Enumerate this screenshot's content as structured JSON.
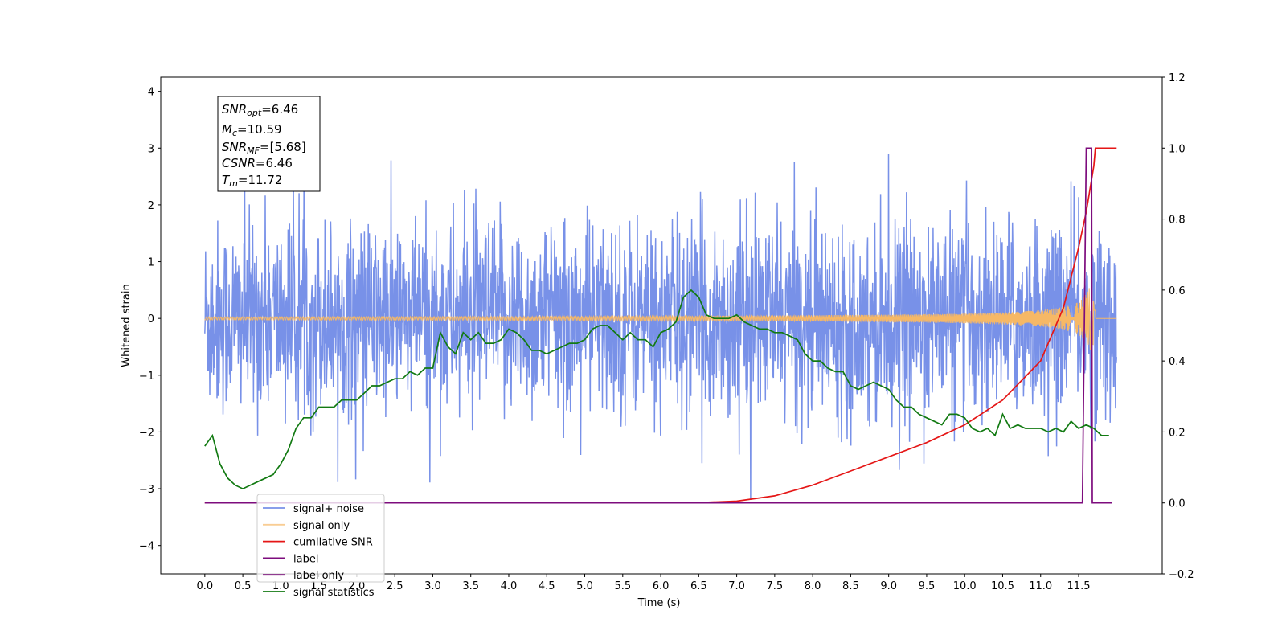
{
  "chart_data": {
    "type": "line",
    "xlabel": "Time (s)",
    "ylabel": "Whitened strain",
    "ylabel_right": "",
    "xlim": [
      -0.58,
      12.6
    ],
    "ylim": [
      -4.5,
      4.25
    ],
    "ylim_right": [
      -0.2,
      1.2
    ],
    "x_ticks": [
      "0.0",
      "0.5",
      "1.0",
      "1.5",
      "2.0",
      "2.5",
      "3.0",
      "3.5",
      "4.0",
      "4.5",
      "5.0",
      "5.5",
      "6.0",
      "6.5",
      "7.0",
      "7.5",
      "8.0",
      "8.5",
      "9.0",
      "9.5",
      "10.0",
      "10.5",
      "11.0",
      "11.5"
    ],
    "y_ticks": [
      "4",
      "3",
      "2",
      "1",
      "0",
      "−1",
      "−2",
      "−3",
      "−4"
    ],
    "y_ticks_right": [
      "1.2",
      "1.0",
      "0.8",
      "0.6",
      "0.4",
      "0.2",
      "0.0",
      "−0.2"
    ],
    "info_box": {
      "snr_opt": {
        "base": "SNR",
        "sub": "opt",
        "value": "=6.46"
      },
      "mc": {
        "base": "M",
        "sub": "c",
        "value": "=10.59"
      },
      "snr_mf": {
        "base": "SNR",
        "sub": "MF",
        "value": "=[5.68]"
      },
      "csnr": {
        "base": "CSNR",
        "value": "=6.46"
      },
      "tm": {
        "base": "T",
        "sub": "m",
        "value": "=11.72"
      }
    },
    "series": [
      {
        "name": "signal+ noise",
        "color": "#7891e8",
        "axis": "left",
        "kind": "noise",
        "duration": 12.0,
        "noise_std": 0.85,
        "noise_spread": 1.5
      },
      {
        "name": "signal only",
        "color": "#f6b866",
        "axis": "left",
        "kind": "chirp",
        "duration": 11.72,
        "amplitude_end": 0.55
      },
      {
        "name": "cumilative SNR",
        "color": "#e51616",
        "axis": "right",
        "x": [
          0.0,
          6.0,
          6.5,
          7.0,
          7.5,
          8.0,
          8.5,
          9.0,
          9.5,
          10.0,
          10.5,
          11.0,
          11.3,
          11.5,
          11.6,
          11.7,
          11.72,
          11.8,
          12.0
        ],
        "y": [
          0.0,
          0.0,
          0.001,
          0.005,
          0.02,
          0.05,
          0.09,
          0.13,
          0.17,
          0.22,
          0.29,
          0.4,
          0.55,
          0.72,
          0.82,
          0.95,
          1.0,
          1.0,
          1.0
        ]
      },
      {
        "name": "label",
        "color": "#7d0c7d",
        "axis": "right",
        "x": [
          0.0,
          11.55,
          11.6,
          11.67,
          11.68,
          11.72,
          11.75,
          11.94
        ],
        "y": [
          0.0,
          0.0,
          1.0,
          1.0,
          0.0,
          0.0,
          0.0,
          0.0
        ]
      },
      {
        "name": "label only",
        "color": "#7d0c7d",
        "axis": "right",
        "kind": "legend-only"
      },
      {
        "name": "signal statistics",
        "color": "#127a12",
        "axis": "right",
        "x": [
          0.0,
          0.1,
          0.2,
          0.3,
          0.4,
          0.5,
          0.6,
          0.7,
          0.8,
          0.9,
          1.0,
          1.1,
          1.2,
          1.3,
          1.4,
          1.5,
          1.6,
          1.7,
          1.8,
          1.9,
          2.0,
          2.1,
          2.2,
          2.3,
          2.4,
          2.5,
          2.6,
          2.7,
          2.8,
          2.9,
          3.0,
          3.1,
          3.2,
          3.3,
          3.4,
          3.5,
          3.6,
          3.7,
          3.8,
          3.9,
          4.0,
          4.1,
          4.2,
          4.3,
          4.4,
          4.5,
          4.6,
          4.7,
          4.8,
          4.9,
          5.0,
          5.1,
          5.2,
          5.3,
          5.4,
          5.5,
          5.6,
          5.7,
          5.8,
          5.9,
          6.0,
          6.1,
          6.2,
          6.3,
          6.4,
          6.5,
          6.6,
          6.7,
          6.8,
          6.9,
          7.0,
          7.1,
          7.2,
          7.3,
          7.4,
          7.5,
          7.6,
          7.7,
          7.8,
          7.9,
          8.0,
          8.1,
          8.2,
          8.3,
          8.4,
          8.5,
          8.6,
          8.7,
          8.8,
          8.9,
          9.0,
          9.1,
          9.2,
          9.3,
          9.4,
          9.5,
          9.6,
          9.7,
          9.8,
          9.9,
          10.0,
          10.1,
          10.2,
          10.3,
          10.4,
          10.5,
          10.6,
          10.7,
          10.8,
          10.9,
          11.0,
          11.1,
          11.2,
          11.3,
          11.4,
          11.5,
          11.6,
          11.7,
          11.8,
          11.9
        ],
        "y": [
          0.16,
          0.19,
          0.11,
          0.07,
          0.05,
          0.04,
          0.05,
          0.06,
          0.07,
          0.08,
          0.11,
          0.15,
          0.21,
          0.24,
          0.24,
          0.27,
          0.27,
          0.27,
          0.29,
          0.29,
          0.29,
          0.31,
          0.33,
          0.33,
          0.34,
          0.35,
          0.35,
          0.37,
          0.36,
          0.38,
          0.38,
          0.48,
          0.44,
          0.42,
          0.48,
          0.46,
          0.48,
          0.45,
          0.45,
          0.46,
          0.49,
          0.48,
          0.46,
          0.43,
          0.43,
          0.42,
          0.43,
          0.44,
          0.45,
          0.45,
          0.46,
          0.49,
          0.5,
          0.5,
          0.48,
          0.46,
          0.48,
          0.46,
          0.46,
          0.44,
          0.48,
          0.49,
          0.51,
          0.58,
          0.6,
          0.58,
          0.53,
          0.52,
          0.52,
          0.52,
          0.53,
          0.51,
          0.5,
          0.49,
          0.49,
          0.48,
          0.48,
          0.47,
          0.46,
          0.42,
          0.4,
          0.4,
          0.38,
          0.37,
          0.37,
          0.33,
          0.32,
          0.33,
          0.34,
          0.33,
          0.32,
          0.29,
          0.27,
          0.27,
          0.25,
          0.24,
          0.23,
          0.22,
          0.25,
          0.25,
          0.24,
          0.21,
          0.2,
          0.21,
          0.19,
          0.25,
          0.21,
          0.22,
          0.21,
          0.21,
          0.21,
          0.2,
          0.21,
          0.2,
          0.23,
          0.21,
          0.22,
          0.21,
          0.19,
          0.19
        ]
      }
    ],
    "legend": {
      "placement": "lower-left"
    },
    "grid": false
  }
}
